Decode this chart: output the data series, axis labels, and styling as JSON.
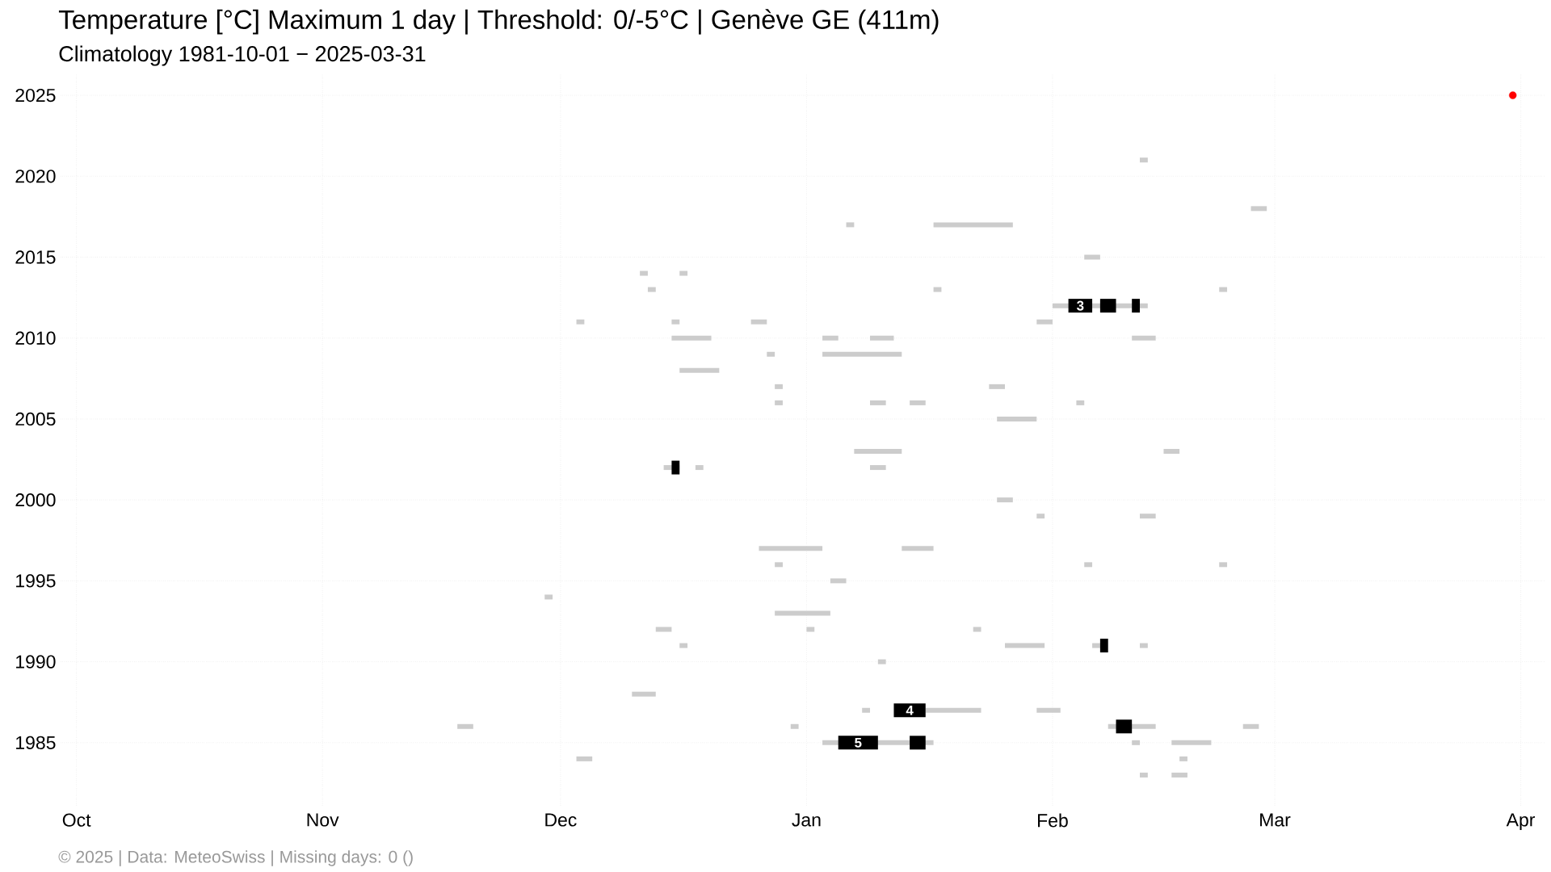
{
  "chart_data": {
    "type": "line",
    "title": "Temperature [°C] Maximum 1 day | Threshold: 0/-5°C | Genève  GE (411m)",
    "subtitle": "Climatology 1981-10-01 − 2025-03-31",
    "annotations": [
      "© 2025 | Data: MeteoSwiss | Missing days: 0 ()",
      {
        "text": "3",
        "x": "2001-02-04T12:00",
        "y": 2012
      },
      {
        "text": "4",
        "x": "2001-01-14",
        "y": 1987
      },
      {
        "text": "5",
        "x": "2001-01-07T12:00",
        "y": 1985
      }
    ],
    "xlim": [
      "2000-09-29",
      "2001-04-04"
    ],
    "xticks": [
      {
        "value": "2000-10-01",
        "label": "Oct"
      },
      {
        "value": "2000-11-01",
        "label": "Nov"
      },
      {
        "value": "2000-12-01",
        "label": "Dec"
      },
      {
        "value": "2001-01-01",
        "label": "Jan"
      },
      {
        "value": "2001-02-01",
        "label": "Feb"
      },
      {
        "value": "2001-03-01",
        "label": "Mar"
      },
      {
        "value": "2001-04-01",
        "label": "Apr"
      }
    ],
    "ylim": [
      1981.1,
      2026.3
    ],
    "yticks": [
      1985,
      1990,
      1995,
      2000,
      2005,
      2010,
      2015,
      2020,
      2025
    ],
    "grid": true,
    "series": [
      {
        "color": "#cccccc",
        "x": [
          "2001-02-12",
          "2001-02-13"
        ],
        "values": [
          2021,
          2021
        ]
      },
      {
        "color": "#cccccc",
        "x": [
          "2001-02-26",
          "2001-02-28"
        ],
        "values": [
          2018,
          2018
        ]
      },
      {
        "color": "#cccccc",
        "x": [
          "2001-01-06",
          "2001-01-07"
        ],
        "values": [
          2017,
          2017
        ]
      },
      {
        "color": "#cccccc",
        "x": [
          "2001-01-17",
          "2001-01-27"
        ],
        "values": [
          2017,
          2017
        ]
      },
      {
        "color": "#cccccc",
        "x": [
          "2001-02-05",
          "2001-02-07"
        ],
        "values": [
          2015,
          2015
        ]
      },
      {
        "color": "#cccccc",
        "x": [
          "2000-12-11",
          "2000-12-12"
        ],
        "values": [
          2014,
          2014
        ]
      },
      {
        "color": "#cccccc",
        "x": [
          "2000-12-16",
          "2000-12-17"
        ],
        "values": [
          2014,
          2014
        ]
      },
      {
        "color": "#cccccc",
        "x": [
          "2000-12-12",
          "2000-12-13"
        ],
        "values": [
          2013,
          2013
        ]
      },
      {
        "color": "#cccccc",
        "x": [
          "2001-01-17",
          "2001-01-18"
        ],
        "values": [
          2013,
          2013
        ]
      },
      {
        "color": "#cccccc",
        "x": [
          "2001-02-22",
          "2001-02-23"
        ],
        "values": [
          2013,
          2013
        ]
      },
      {
        "color": "#cccccc",
        "x": [
          "2001-02-01",
          "2001-02-13"
        ],
        "values": [
          2012,
          2012
        ]
      },
      {
        "color": "#cccccc",
        "x": [
          "2000-12-03",
          "2000-12-04"
        ],
        "values": [
          2011,
          2011
        ]
      },
      {
        "color": "#cccccc",
        "x": [
          "2000-12-15",
          "2000-12-16"
        ],
        "values": [
          2011,
          2011
        ]
      },
      {
        "color": "#cccccc",
        "x": [
          "2000-12-25",
          "2000-12-27"
        ],
        "values": [
          2011,
          2011
        ]
      },
      {
        "color": "#cccccc",
        "x": [
          "2001-01-30",
          "2001-02-01"
        ],
        "values": [
          2011,
          2011
        ]
      },
      {
        "color": "#cccccc",
        "x": [
          "2000-12-15",
          "2000-12-20"
        ],
        "values": [
          2010,
          2010
        ]
      },
      {
        "color": "#cccccc",
        "x": [
          "2001-01-03",
          "2001-01-05"
        ],
        "values": [
          2010,
          2010
        ]
      },
      {
        "color": "#cccccc",
        "x": [
          "2001-01-09",
          "2001-01-12"
        ],
        "values": [
          2010,
          2010
        ]
      },
      {
        "color": "#cccccc",
        "x": [
          "2001-02-11",
          "2001-02-14"
        ],
        "values": [
          2010,
          2010
        ]
      },
      {
        "color": "#cccccc",
        "x": [
          "2000-12-27",
          "2000-12-28"
        ],
        "values": [
          2009,
          2009
        ]
      },
      {
        "color": "#cccccc",
        "x": [
          "2001-01-03",
          "2001-01-13"
        ],
        "values": [
          2009,
          2009
        ]
      },
      {
        "color": "#cccccc",
        "x": [
          "2000-12-16",
          "2000-12-21"
        ],
        "values": [
          2008,
          2008
        ]
      },
      {
        "color": "#cccccc",
        "x": [
          "2000-12-28",
          "2000-12-29"
        ],
        "values": [
          2007,
          2007
        ]
      },
      {
        "color": "#cccccc",
        "x": [
          "2001-01-24",
          "2001-01-26"
        ],
        "values": [
          2007,
          2007
        ]
      },
      {
        "color": "#cccccc",
        "x": [
          "2000-12-28",
          "2000-12-29"
        ],
        "values": [
          2006,
          2006
        ]
      },
      {
        "color": "#cccccc",
        "x": [
          "2001-01-09",
          "2001-01-11"
        ],
        "values": [
          2006,
          2006
        ]
      },
      {
        "color": "#cccccc",
        "x": [
          "2001-01-14",
          "2001-01-16"
        ],
        "values": [
          2006,
          2006
        ]
      },
      {
        "color": "#cccccc",
        "x": [
          "2001-02-04",
          "2001-02-05"
        ],
        "values": [
          2006,
          2006
        ]
      },
      {
        "color": "#cccccc",
        "x": [
          "2001-01-25",
          "2001-01-30"
        ],
        "values": [
          2005,
          2005
        ]
      },
      {
        "color": "#cccccc",
        "x": [
          "2001-01-07",
          "2001-01-13"
        ],
        "values": [
          2003,
          2003
        ]
      },
      {
        "color": "#cccccc",
        "x": [
          "2001-02-15",
          "2001-02-17"
        ],
        "values": [
          2003,
          2003
        ]
      },
      {
        "color": "#cccccc",
        "x": [
          "2000-12-14",
          "2000-12-16"
        ],
        "values": [
          2002,
          2002
        ]
      },
      {
        "color": "#cccccc",
        "x": [
          "2000-12-18",
          "2000-12-19"
        ],
        "values": [
          2002,
          2002
        ]
      },
      {
        "color": "#cccccc",
        "x": [
          "2001-01-09",
          "2001-01-11"
        ],
        "values": [
          2002,
          2002
        ]
      },
      {
        "color": "#cccccc",
        "x": [
          "2001-01-25",
          "2001-01-27"
        ],
        "values": [
          2000,
          2000
        ]
      },
      {
        "color": "#cccccc",
        "x": [
          "2001-01-30",
          "2001-01-31"
        ],
        "values": [
          1999,
          1999
        ]
      },
      {
        "color": "#cccccc",
        "x": [
          "2001-02-12",
          "2001-02-14"
        ],
        "values": [
          1999,
          1999
        ]
      },
      {
        "color": "#cccccc",
        "x": [
          "2000-12-26",
          "2001-01-03"
        ],
        "values": [
          1997,
          1997
        ]
      },
      {
        "color": "#cccccc",
        "x": [
          "2001-01-13",
          "2001-01-17"
        ],
        "values": [
          1997,
          1997
        ]
      },
      {
        "color": "#cccccc",
        "x": [
          "2000-12-28",
          "2000-12-29"
        ],
        "values": [
          1996,
          1996
        ]
      },
      {
        "color": "#cccccc",
        "x": [
          "2001-02-05",
          "2001-02-06"
        ],
        "values": [
          1996,
          1996
        ]
      },
      {
        "color": "#cccccc",
        "x": [
          "2001-02-22",
          "2001-02-23"
        ],
        "values": [
          1996,
          1996
        ]
      },
      {
        "color": "#cccccc",
        "x": [
          "2001-01-04",
          "2001-01-06"
        ],
        "values": [
          1995,
          1995
        ]
      },
      {
        "color": "#cccccc",
        "x": [
          "2000-11-29",
          "2000-11-30"
        ],
        "values": [
          1994,
          1994
        ]
      },
      {
        "color": "#cccccc",
        "x": [
          "2000-12-28",
          "2001-01-04"
        ],
        "values": [
          1993,
          1993
        ]
      },
      {
        "color": "#cccccc",
        "x": [
          "2000-12-13",
          "2000-12-15"
        ],
        "values": [
          1992,
          1992
        ]
      },
      {
        "color": "#cccccc",
        "x": [
          "2001-01-01",
          "2001-01-02"
        ],
        "values": [
          1992,
          1992
        ]
      },
      {
        "color": "#cccccc",
        "x": [
          "2001-01-22",
          "2001-01-23"
        ],
        "values": [
          1992,
          1992
        ]
      },
      {
        "color": "#cccccc",
        "x": [
          "2000-12-16",
          "2000-12-17"
        ],
        "values": [
          1991,
          1991
        ]
      },
      {
        "color": "#cccccc",
        "x": [
          "2001-01-26",
          "2001-01-31"
        ],
        "values": [
          1991,
          1991
        ]
      },
      {
        "color": "#cccccc",
        "x": [
          "2001-02-06",
          "2001-02-07"
        ],
        "values": [
          1991,
          1991
        ]
      },
      {
        "color": "#cccccc",
        "x": [
          "2001-02-12",
          "2001-02-13"
        ],
        "values": [
          1991,
          1991
        ]
      },
      {
        "color": "#cccccc",
        "x": [
          "2001-01-10",
          "2001-01-11"
        ],
        "values": [
          1990,
          1990
        ]
      },
      {
        "color": "#cccccc",
        "x": [
          "2000-12-10",
          "2000-12-13"
        ],
        "values": [
          1988,
          1988
        ]
      },
      {
        "color": "#cccccc",
        "x": [
          "2001-01-08",
          "2001-01-09"
        ],
        "values": [
          1987,
          1987
        ]
      },
      {
        "color": "#cccccc",
        "x": [
          "2001-01-16",
          "2001-01-23"
        ],
        "values": [
          1987,
          1987
        ]
      },
      {
        "color": "#cccccc",
        "x": [
          "2001-01-30",
          "2001-02-02"
        ],
        "values": [
          1987,
          1987
        ]
      },
      {
        "color": "#cccccc",
        "x": [
          "2000-11-18",
          "2000-11-20"
        ],
        "values": [
          1986,
          1986
        ]
      },
      {
        "color": "#cccccc",
        "x": [
          "2000-12-30",
          "2000-12-31"
        ],
        "values": [
          1986,
          1986
        ]
      },
      {
        "color": "#cccccc",
        "x": [
          "2001-02-08",
          "2001-02-14"
        ],
        "values": [
          1986,
          1986
        ]
      },
      {
        "color": "#cccccc",
        "x": [
          "2001-02-25",
          "2001-02-27"
        ],
        "values": [
          1986,
          1986
        ]
      },
      {
        "color": "#cccccc",
        "x": [
          "2001-01-03",
          "2001-01-17"
        ],
        "values": [
          1985,
          1985
        ]
      },
      {
        "color": "#cccccc",
        "x": [
          "2001-02-11",
          "2001-02-12"
        ],
        "values": [
          1985,
          1985
        ]
      },
      {
        "color": "#cccccc",
        "x": [
          "2001-02-16",
          "2001-02-21"
        ],
        "values": [
          1985,
          1985
        ]
      },
      {
        "color": "#cccccc",
        "x": [
          "2000-12-03",
          "2000-12-05"
        ],
        "values": [
          1984,
          1984
        ]
      },
      {
        "color": "#cccccc",
        "x": [
          "2001-02-17",
          "2001-02-18"
        ],
        "values": [
          1984,
          1984
        ]
      },
      {
        "color": "#cccccc",
        "x": [
          "2001-02-12",
          "2001-02-13"
        ],
        "values": [
          1983,
          1983
        ]
      },
      {
        "color": "#cccccc",
        "x": [
          "2001-02-16",
          "2001-02-18"
        ],
        "values": [
          1983,
          1983
        ]
      },
      {
        "color": "#000000",
        "x": [
          "2001-02-03",
          "2001-02-06"
        ],
        "values": [
          2012,
          2012
        ]
      },
      {
        "color": "#000000",
        "x": [
          "2001-02-07",
          "2001-02-09"
        ],
        "values": [
          2012,
          2012
        ]
      },
      {
        "color": "#000000",
        "x": [
          "2001-02-11",
          "2001-02-12"
        ],
        "values": [
          2012,
          2012
        ]
      },
      {
        "color": "#000000",
        "x": [
          "2000-12-15",
          "2000-12-16"
        ],
        "values": [
          2002,
          2002
        ]
      },
      {
        "color": "#000000",
        "x": [
          "2001-02-07",
          "2001-02-08"
        ],
        "values": [
          1991,
          1991
        ]
      },
      {
        "color": "#000000",
        "x": [
          "2001-01-12",
          "2001-01-16"
        ],
        "values": [
          1987,
          1987
        ]
      },
      {
        "color": "#000000",
        "x": [
          "2001-02-09",
          "2001-02-11"
        ],
        "values": [
          1986,
          1986
        ]
      },
      {
        "color": "#000000",
        "x": [
          "2001-01-05",
          "2001-01-10"
        ],
        "values": [
          1985,
          1985
        ]
      },
      {
        "color": "#000000",
        "x": [
          "2001-01-14",
          "2001-01-16"
        ],
        "values": [
          1985,
          1985
        ]
      },
      {
        "type": "scatter",
        "color": "#ff0000",
        "x": [
          "2001-03-31"
        ],
        "values": [
          2025
        ]
      }
    ]
  }
}
